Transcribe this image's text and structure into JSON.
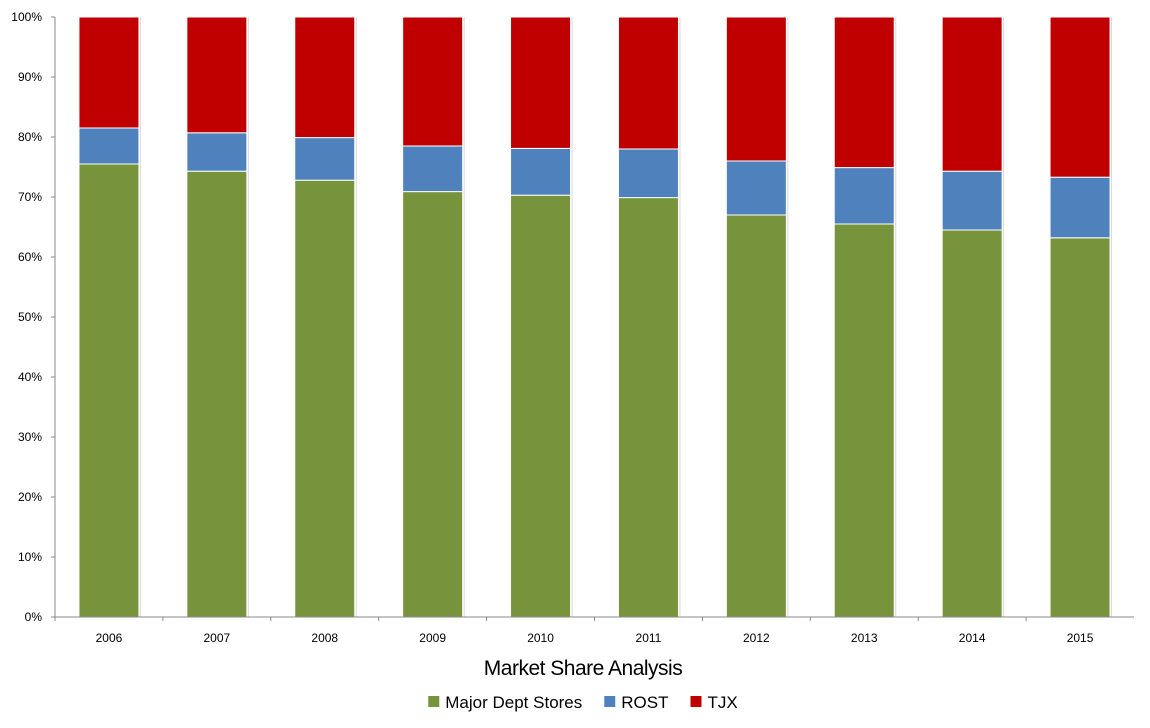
{
  "chart_data": {
    "type": "bar",
    "stacked": true,
    "percent_stacked": true,
    "categories": [
      "2006",
      "2007",
      "2008",
      "2009",
      "2010",
      "2011",
      "2012",
      "2013",
      "2014",
      "2015"
    ],
    "series": [
      {
        "name": "Major Dept Stores",
        "color": "#77933c",
        "values": [
          75.5,
          74.3,
          72.8,
          70.9,
          70.3,
          69.9,
          67.0,
          65.5,
          64.5,
          63.2
        ]
      },
      {
        "name": "ROST",
        "color": "#4f81bd",
        "values": [
          6.0,
          6.4,
          7.1,
          7.6,
          7.8,
          8.1,
          9.0,
          9.4,
          9.8,
          10.1
        ]
      },
      {
        "name": "TJX",
        "color": "#c00000",
        "values": [
          18.5,
          19.3,
          20.1,
          21.5,
          21.9,
          22.0,
          24.0,
          25.1,
          25.7,
          26.7
        ]
      }
    ],
    "yticks": [
      "0%",
      "10%",
      "20%",
      "30%",
      "40%",
      "50%",
      "60%",
      "70%",
      "80%",
      "90%",
      "100%"
    ],
    "ylim": [
      0,
      100
    ],
    "xlabel": "Market Share Analysis",
    "ylabel": "",
    "title": "",
    "grid": false,
    "legend_position": "bottom"
  }
}
